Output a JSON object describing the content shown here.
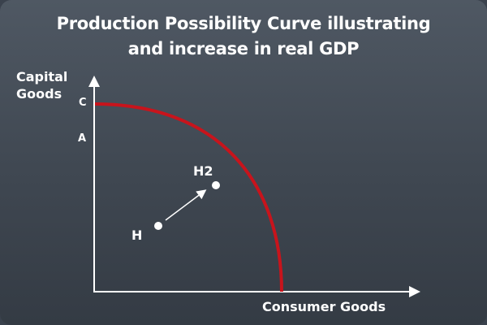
{
  "title": {
    "line1": "Production Possibility Curve illustrating",
    "line2": "and increase in real GDP"
  },
  "y_axis": {
    "label_line1": "Capital",
    "label_line2": "Goods"
  },
  "x_axis": {
    "label": "Consumer Goods"
  },
  "y_ticks": {
    "c": "C",
    "a": "A"
  },
  "points": [
    {
      "id": "H",
      "label": "H"
    },
    {
      "id": "H2",
      "label": "H2"
    }
  ],
  "colors": {
    "curve": "#c8141c",
    "axis": "#ffffff",
    "background": "#454d57"
  }
}
